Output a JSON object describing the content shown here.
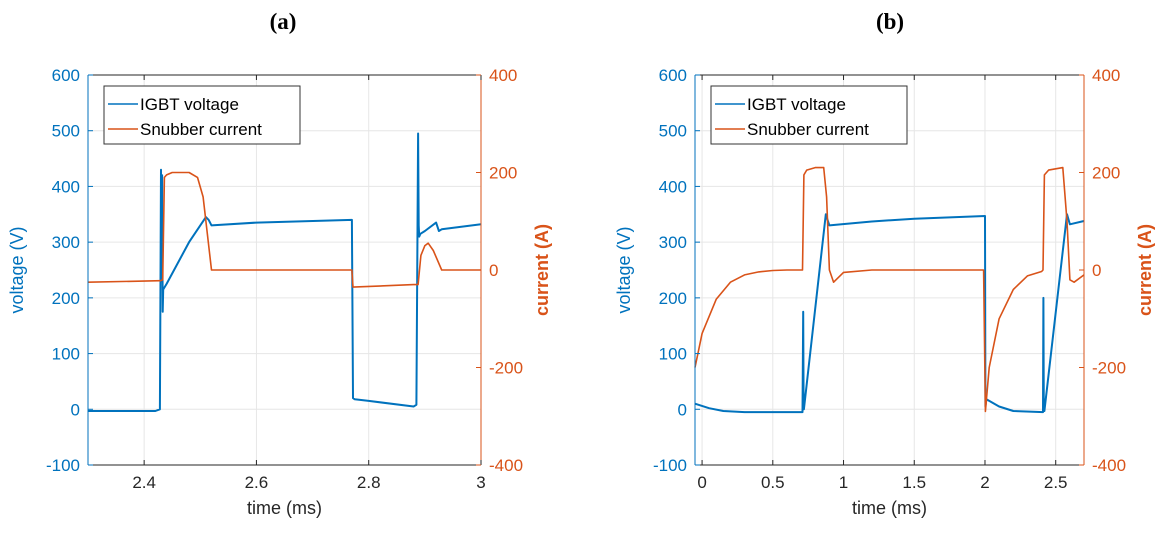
{
  "colors": {
    "voltage": "#0072BD",
    "current": "#D95319",
    "axis": "#262626",
    "grid": "#e6e6e6"
  },
  "chart_data": [
    {
      "type": "line",
      "panel_label": "(a)",
      "xlabel": "time (ms)",
      "ylabel_left": "voltage (V)",
      "ylabel_right": "current (A)",
      "xlim": [
        2.3,
        3.0
      ],
      "ylim_left": [
        -100,
        600
      ],
      "ylim_right": [
        -400,
        400
      ],
      "xticks": [
        2.4,
        2.6,
        2.8,
        3.0
      ],
      "xtick_labels": [
        "2.4",
        "2.6",
        "2.8",
        "3"
      ],
      "yticks_left": [
        -100,
        0,
        100,
        200,
        300,
        400,
        500,
        600
      ],
      "yticks_right": [
        -400,
        -200,
        0,
        200,
        400
      ],
      "grid": true,
      "legend": "top-left",
      "series": [
        {
          "name": "IGBT voltage",
          "axis": "left",
          "x": [
            2.3,
            2.42,
            2.428,
            2.43,
            2.431,
            2.432,
            2.433,
            2.434,
            2.44,
            2.48,
            2.51,
            2.515,
            2.52,
            2.6,
            2.77,
            2.772,
            2.775,
            2.8,
            2.88,
            2.885,
            2.888,
            2.889,
            2.89,
            2.892,
            2.9,
            2.92,
            2.925,
            2.93,
            3.0
          ],
          "y": [
            -3,
            -3,
            0,
            430,
            230,
            420,
            175,
            215,
            225,
            300,
            345,
            340,
            330,
            335,
            340,
            20,
            18,
            15,
            5,
            8,
            495,
            330,
            310,
            315,
            320,
            335,
            320,
            323,
            332
          ]
        },
        {
          "name": "Snubber current",
          "axis": "right",
          "x": [
            2.3,
            2.429,
            2.433,
            2.436,
            2.44,
            2.45,
            2.48,
            2.495,
            2.505,
            2.52,
            2.6,
            2.77,
            2.772,
            2.88,
            2.888,
            2.893,
            2.9,
            2.906,
            2.915,
            2.93,
            3.0
          ],
          "y": [
            -25,
            -22,
            -20,
            190,
            195,
            200,
            200,
            190,
            150,
            0,
            0,
            0,
            -35,
            -30,
            -30,
            30,
            50,
            55,
            40,
            0,
            0
          ]
        }
      ]
    },
    {
      "type": "line",
      "panel_label": "(b)",
      "xlabel": "time (ms)",
      "ylabel_left": "voltage (V)",
      "ylabel_right": "current (A)",
      "xlim": [
        -0.05,
        2.7
      ],
      "ylim_left": [
        -100,
        600
      ],
      "ylim_right": [
        -400,
        400
      ],
      "xticks": [
        0,
        0.5,
        1,
        1.5,
        2,
        2.5
      ],
      "xtick_labels": [
        "0",
        "0.5",
        "1",
        "1.5",
        "2",
        "2.5"
      ],
      "yticks_left": [
        -100,
        0,
        100,
        200,
        300,
        400,
        500,
        600
      ],
      "yticks_right": [
        -400,
        -200,
        0,
        200,
        400
      ],
      "grid": true,
      "legend": "top-left",
      "series": [
        {
          "name": "IGBT voltage",
          "axis": "left",
          "x": [
            -0.05,
            0.05,
            0.15,
            0.3,
            0.71,
            0.715,
            0.718,
            0.72,
            0.875,
            0.88,
            0.9,
            1.2,
            1.5,
            2.0,
            2.003,
            2.01,
            2.1,
            2.2,
            2.41,
            2.413,
            2.416,
            2.42,
            2.58,
            2.6,
            2.7
          ],
          "y": [
            10,
            2,
            -3,
            -5,
            -5,
            175,
            10,
            0,
            350,
            345,
            330,
            337,
            342,
            347,
            5,
            18,
            5,
            -3,
            -5,
            200,
            0,
            -3,
            350,
            332,
            338
          ]
        },
        {
          "name": "Snubber current",
          "axis": "right",
          "x": [
            -0.05,
            0.0,
            0.1,
            0.2,
            0.3,
            0.4,
            0.5,
            0.6,
            0.71,
            0.72,
            0.74,
            0.8,
            0.86,
            0.88,
            0.9,
            0.93,
            1.0,
            1.2,
            1.6,
            1.99,
            2.003,
            2.03,
            2.1,
            2.2,
            2.3,
            2.4,
            2.41,
            2.42,
            2.45,
            2.55,
            2.58,
            2.6,
            2.63,
            2.7
          ],
          "y": [
            -200,
            -130,
            -60,
            -25,
            -10,
            -4,
            -1,
            0,
            0,
            195,
            205,
            210,
            210,
            150,
            0,
            -25,
            -5,
            0,
            0,
            0,
            -290,
            -200,
            -100,
            -40,
            -12,
            -3,
            0,
            195,
            205,
            210,
            100,
            -20,
            -25,
            -10
          ]
        }
      ]
    }
  ]
}
